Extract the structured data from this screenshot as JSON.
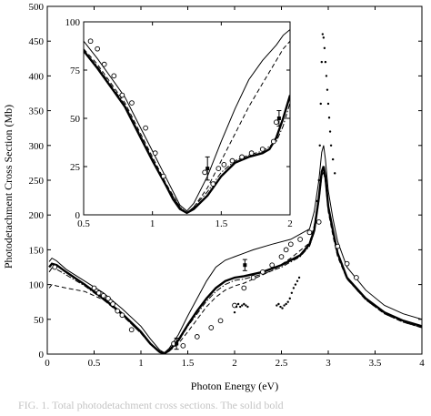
{
  "caption": "FIG. 1. Total photodetachment cross sections. The solid bold",
  "chart_data": [
    {
      "id": "main",
      "type": "line",
      "xlabel": "Photon Energy (eV)",
      "ylabel": "Photodetachment Cross Section (Mb)",
      "xlim": [
        0,
        4
      ],
      "ylim": [
        0,
        500
      ],
      "xticks": [
        0,
        0.5,
        1,
        1.5,
        2,
        2.5,
        3,
        3.5,
        4
      ],
      "xtick_labels": [
        "0",
        "0.5",
        "1",
        "1.5",
        "2",
        "2.5",
        "3",
        "3.5",
        "4"
      ],
      "yticks": [
        0,
        50,
        100,
        150,
        200,
        250,
        300,
        350,
        400,
        450,
        500
      ],
      "ytick_labels": [
        "0",
        "50",
        "100",
        "150",
        "200",
        "250",
        "300",
        "350",
        "400",
        "450",
        "500"
      ],
      "grid": false,
      "series": [
        {
          "style": "solid-bold",
          "x": [
            0.02,
            0.05,
            0.1,
            0.2,
            0.4,
            0.6,
            0.8,
            1.0,
            1.1,
            1.2,
            1.25,
            1.3,
            1.4,
            1.5,
            1.6,
            1.7,
            1.8,
            1.9,
            2.0,
            2.1,
            2.3,
            2.5,
            2.7,
            2.8,
            2.85,
            2.9,
            2.93,
            2.95,
            2.97,
            3.0,
            3.05,
            3.1,
            3.2,
            3.4,
            3.6,
            3.8,
            4.0
          ],
          "y": [
            125,
            130,
            128,
            118,
            100,
            80,
            58,
            32,
            15,
            3,
            1,
            5,
            20,
            42,
            62,
            80,
            95,
            105,
            110,
            112,
            118,
            128,
            142,
            158,
            178,
            225,
            262,
            270,
            255,
            212,
            178,
            145,
            110,
            80,
            60,
            48,
            40
          ]
        },
        {
          "style": "solid-thin",
          "x": [
            0.02,
            0.05,
            0.1,
            0.2,
            0.4,
            0.6,
            0.8,
            1.0,
            1.1,
            1.2,
            1.25,
            1.3,
            1.4,
            1.5,
            1.6,
            1.7,
            1.8,
            1.9,
            2.0,
            2.1,
            2.2,
            2.4,
            2.6,
            2.8,
            2.85,
            2.9,
            2.93,
            2.95,
            2.97,
            3.0,
            3.05,
            3.1,
            3.2,
            3.4,
            3.6,
            3.8,
            4.0
          ],
          "y": [
            133,
            138,
            134,
            122,
            105,
            88,
            65,
            40,
            22,
            6,
            2,
            8,
            28,
            55,
            80,
            105,
            125,
            135,
            140,
            145,
            150,
            158,
            165,
            180,
            205,
            250,
            290,
            300,
            280,
            235,
            195,
            162,
            125,
            92,
            70,
            58,
            50
          ]
        },
        {
          "style": "dashed",
          "x": [
            0.02,
            0.05,
            0.1,
            0.2,
            0.4,
            0.6,
            0.8,
            1.0,
            1.1,
            1.2,
            1.25,
            1.3,
            1.4,
            1.5,
            1.6,
            1.7,
            1.8,
            1.9,
            2.0,
            2.1,
            2.2,
            2.4,
            2.6,
            2.8,
            2.85,
            2.9,
            2.93,
            2.95,
            2.97,
            3.0,
            3.05,
            3.1,
            3.2,
            3.4,
            3.6,
            3.8,
            4.0
          ],
          "y": [
            95,
            100,
            98,
            95,
            90,
            78,
            56,
            30,
            14,
            3,
            1,
            4,
            15,
            32,
            50,
            68,
            82,
            92,
            98,
            102,
            108,
            120,
            138,
            160,
            185,
            230,
            258,
            262,
            248,
            205,
            170,
            140,
            108,
            78,
            58,
            46,
            38
          ]
        },
        {
          "style": "dash-dot",
          "x": [
            0.02,
            0.05,
            0.1,
            0.2,
            0.4,
            0.6,
            0.8,
            1.0,
            1.1,
            1.2,
            1.25,
            1.3,
            1.4,
            1.5,
            1.6,
            1.7,
            1.8,
            1.9,
            2.0,
            2.1,
            2.3,
            2.5,
            2.7,
            2.8,
            2.85,
            2.9,
            2.93,
            2.95,
            2.97,
            3.0,
            3.05,
            3.1,
            3.2,
            3.4,
            3.6,
            3.8,
            4.0
          ],
          "y": [
            118,
            124,
            122,
            114,
            98,
            78,
            56,
            30,
            14,
            2,
            1,
            4,
            18,
            40,
            58,
            76,
            90,
            100,
            106,
            108,
            115,
            125,
            140,
            155,
            175,
            220,
            255,
            262,
            248,
            208,
            175,
            143,
            108,
            78,
            58,
            46,
            38
          ]
        },
        {
          "style": "open-circles",
          "x": [
            0.08,
            0.5,
            0.55,
            0.6,
            0.65,
            0.7,
            0.75,
            0.8,
            0.9,
            1.35,
            1.45,
            1.6,
            1.75,
            1.85,
            2.0,
            2.1,
            2.2,
            2.3,
            2.4,
            2.5,
            2.55,
            2.6,
            2.7,
            2.8,
            2.9,
            3.1,
            3.2,
            3.3
          ],
          "y": [
            125,
            95,
            88,
            84,
            80,
            72,
            62,
            56,
            35,
            15,
            12,
            25,
            38,
            48,
            70,
            95,
            110,
            118,
            128,
            140,
            150,
            158,
            165,
            175,
            190,
            155,
            130,
            110
          ]
        },
        {
          "style": "small-dots",
          "x": [
            2.0,
            2.02,
            2.04,
            2.06,
            2.08,
            2.1,
            2.12,
            2.14,
            2.45,
            2.47,
            2.49,
            2.51,
            2.53,
            2.55,
            2.57,
            2.59,
            2.61,
            2.63,
            2.65,
            2.67,
            2.69,
            2.88,
            2.9,
            2.91,
            2.92,
            2.93,
            2.94,
            2.95,
            2.96,
            2.97,
            2.98,
            2.99,
            3.0,
            3.01,
            3.02,
            3.03,
            3.05,
            3.07
          ],
          "y": [
            60,
            68,
            72,
            68,
            70,
            72,
            70,
            68,
            70,
            72,
            68,
            66,
            70,
            72,
            75,
            80,
            88,
            95,
            100,
            105,
            110,
            220,
            250,
            300,
            360,
            420,
            460,
            455,
            440,
            420,
            400,
            380,
            360,
            340,
            320,
            300,
            280,
            260
          ]
        },
        {
          "style": "error-points",
          "points": [
            {
              "x": 1.38,
              "y": 15,
              "err": 8
            },
            {
              "x": 2.11,
              "y": 128,
              "err": 8
            }
          ]
        }
      ]
    },
    {
      "id": "inset",
      "type": "line",
      "xlim": [
        0.5,
        2
      ],
      "ylim": [
        0,
        100
      ],
      "xticks": [
        0.5,
        1,
        1.5,
        2
      ],
      "xtick_labels": [
        "0.5",
        "1",
        "1.5",
        "2"
      ],
      "yticks": [
        0,
        25,
        50,
        75,
        100
      ],
      "ytick_labels": [
        "0",
        "25",
        "50",
        "75",
        "100"
      ],
      "grid": false,
      "series": [
        {
          "style": "solid-bold",
          "x": [
            0.5,
            0.6,
            0.7,
            0.8,
            0.9,
            1.0,
            1.1,
            1.15,
            1.2,
            1.25,
            1.3,
            1.4,
            1.5,
            1.6,
            1.7,
            1.8,
            1.85,
            1.9,
            1.95,
            2.0
          ],
          "y": [
            85,
            76,
            66,
            56,
            42,
            28,
            15,
            8,
            3,
            1,
            3,
            10,
            20,
            27,
            30,
            32,
            34,
            40,
            50,
            62
          ]
        },
        {
          "style": "solid-thin",
          "x": [
            0.5,
            0.6,
            0.7,
            0.8,
            0.9,
            1.0,
            1.1,
            1.2,
            1.25,
            1.3,
            1.4,
            1.5,
            1.6,
            1.7,
            1.8,
            1.9,
            1.95,
            2.0
          ],
          "y": [
            90,
            81,
            71,
            61,
            47,
            33,
            19,
            5,
            2,
            6,
            20,
            38,
            55,
            70,
            80,
            88,
            93,
            96
          ]
        },
        {
          "style": "dashed",
          "x": [
            0.5,
            0.6,
            0.7,
            0.8,
            0.9,
            1.0,
            1.1,
            1.2,
            1.25,
            1.3,
            1.4,
            1.5,
            1.6,
            1.7,
            1.8,
            1.9,
            1.95,
            2.0
          ],
          "y": [
            86,
            78,
            68,
            58,
            44,
            30,
            16,
            4,
            1,
            4,
            14,
            28,
            42,
            56,
            68,
            80,
            86,
            90
          ]
        },
        {
          "style": "dash-dot",
          "x": [
            0.5,
            0.6,
            0.7,
            0.8,
            0.9,
            1.0,
            1.1,
            1.2,
            1.25,
            1.3,
            1.4,
            1.5,
            1.6,
            1.7,
            1.8,
            1.9,
            1.95,
            2.0
          ],
          "y": [
            85,
            77,
            67,
            57,
            43,
            29,
            15,
            4,
            1,
            4,
            12,
            22,
            28,
            31,
            33,
            38,
            46,
            58
          ]
        },
        {
          "style": "open-circles",
          "x": [
            0.55,
            0.6,
            0.65,
            0.72,
            0.78,
            0.85,
            0.95,
            1.02,
            1.08,
            1.38,
            1.44,
            1.48,
            1.52,
            1.58,
            1.65,
            1.72,
            1.8,
            1.88,
            1.9
          ],
          "y": [
            90,
            86,
            78,
            72,
            62,
            58,
            45,
            32,
            20,
            22,
            16,
            24,
            26,
            28,
            30,
            32,
            34,
            38,
            48
          ]
        },
        {
          "style": "error-points",
          "points": [
            {
              "x": 1.4,
              "y": 24,
              "err": 6
            },
            {
              "x": 1.92,
              "y": 50,
              "err": 4
            }
          ]
        }
      ]
    }
  ]
}
